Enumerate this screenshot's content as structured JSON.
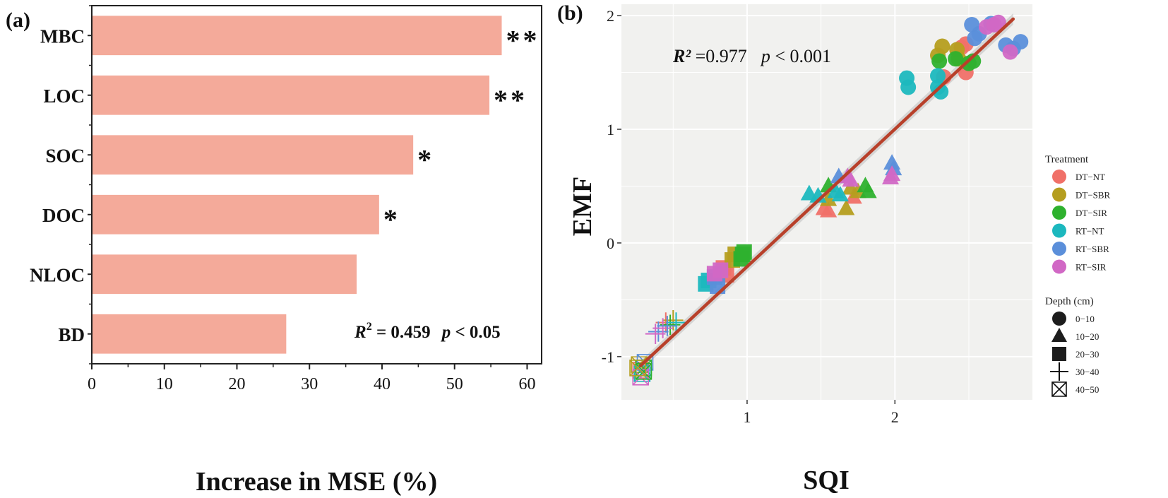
{
  "chart_data": [
    {
      "type": "bar",
      "orientation": "horizontal",
      "panel_label": "(a)",
      "categories": [
        "MBC",
        "LOC",
        "SOC",
        "DOC",
        "NLOC",
        "BD"
      ],
      "values": [
        56.5,
        54.8,
        44.3,
        39.6,
        36.5,
        26.8
      ],
      "significance": [
        "**",
        "**",
        "*",
        "*",
        "",
        ""
      ],
      "xlabel": "Increase in MSE (%)",
      "xlim": [
        0,
        62
      ],
      "xticks": [
        "0",
        "10",
        "20",
        "30",
        "40",
        "50",
        "60"
      ],
      "xtick_values": [
        0,
        10,
        20,
        30,
        40,
        50,
        60
      ],
      "bar_color": "#f4aa9a",
      "annotation": {
        "r2_label": "R",
        "r2_sup": "2",
        "r2_text": " = 0.459",
        "p_label": "p",
        "p_text": " < 0.05"
      }
    },
    {
      "type": "scatter",
      "panel_label": "(b)",
      "xlabel": "SQI",
      "ylabel": "EMF",
      "xlim": [
        0.15,
        2.93
      ],
      "ylim": [
        -1.38,
        2.1
      ],
      "xticks": [
        "1",
        "2"
      ],
      "xtick_values": [
        1,
        2
      ],
      "yticks": [
        "-1",
        "0",
        "1",
        "2"
      ],
      "ytick_values": [
        -1,
        0,
        1,
        2
      ],
      "background": "#f1f1ef",
      "annotation": {
        "r2_label": "R²",
        "r2_text": " =0.977",
        "p_label": "p",
        "p_text": " < 0.001"
      },
      "fit_line": {
        "x": [
          0.28,
          2.8
        ],
        "y": [
          -1.08,
          1.97
        ],
        "color": "#b8402a"
      },
      "legend_treatment": {
        "title": "Treatment",
        "items": [
          {
            "label": "DT−NT",
            "color": "#f07068"
          },
          {
            "label": "DT−SBR",
            "color": "#b59e1f"
          },
          {
            "label": "DT−SIR",
            "color": "#2eb12e"
          },
          {
            "label": "RT−NT",
            "color": "#1cb8be"
          },
          {
            "label": "RT−SBR",
            "color": "#5b8fda"
          },
          {
            "label": "RT−SIR",
            "color": "#d168c5"
          }
        ]
      },
      "legend_depth": {
        "title": "Depth (cm)",
        "items": [
          {
            "label": "0−10",
            "shape": "circle"
          },
          {
            "label": "10−20",
            "shape": "triangle"
          },
          {
            "label": "20−30",
            "shape": "square"
          },
          {
            "label": "30−40",
            "shape": "plus"
          },
          {
            "label": "40−50",
            "shape": "boxx"
          }
        ]
      },
      "points": [
        {
          "x": 2.48,
          "y": 1.75,
          "t": 0,
          "d": 0
        },
        {
          "x": 2.45,
          "y": 1.72,
          "t": 0,
          "d": 0
        },
        {
          "x": 2.33,
          "y": 1.46,
          "t": 0,
          "d": 0
        },
        {
          "x": 2.48,
          "y": 1.5,
          "t": 0,
          "d": 0
        },
        {
          "x": 2.32,
          "y": 1.73,
          "t": 1,
          "d": 0
        },
        {
          "x": 2.42,
          "y": 1.7,
          "t": 1,
          "d": 0
        },
        {
          "x": 2.29,
          "y": 1.65,
          "t": 1,
          "d": 0
        },
        {
          "x": 2.43,
          "y": 1.62,
          "t": 1,
          "d": 0
        },
        {
          "x": 2.3,
          "y": 1.6,
          "t": 2,
          "d": 0
        },
        {
          "x": 2.41,
          "y": 1.62,
          "t": 2,
          "d": 0
        },
        {
          "x": 2.53,
          "y": 1.6,
          "t": 2,
          "d": 0
        },
        {
          "x": 2.5,
          "y": 1.58,
          "t": 2,
          "d": 0
        },
        {
          "x": 2.08,
          "y": 1.45,
          "t": 3,
          "d": 0
        },
        {
          "x": 2.09,
          "y": 1.37,
          "t": 3,
          "d": 0
        },
        {
          "x": 2.29,
          "y": 1.47,
          "t": 3,
          "d": 0
        },
        {
          "x": 2.29,
          "y": 1.37,
          "t": 3,
          "d": 0
        },
        {
          "x": 2.31,
          "y": 1.33,
          "t": 3,
          "d": 0
        },
        {
          "x": 2.52,
          "y": 1.92,
          "t": 4,
          "d": 0
        },
        {
          "x": 2.57,
          "y": 1.84,
          "t": 4,
          "d": 0
        },
        {
          "x": 2.54,
          "y": 1.8,
          "t": 4,
          "d": 0
        },
        {
          "x": 2.75,
          "y": 1.74,
          "t": 4,
          "d": 0
        },
        {
          "x": 2.85,
          "y": 1.77,
          "t": 4,
          "d": 0
        },
        {
          "x": 2.8,
          "y": 1.71,
          "t": 4,
          "d": 0
        },
        {
          "x": 2.65,
          "y": 1.93,
          "t": 4,
          "d": 0
        },
        {
          "x": 2.7,
          "y": 1.94,
          "t": 5,
          "d": 0
        },
        {
          "x": 2.67,
          "y": 1.92,
          "t": 5,
          "d": 0
        },
        {
          "x": 2.62,
          "y": 1.9,
          "t": 5,
          "d": 0
        },
        {
          "x": 2.78,
          "y": 1.68,
          "t": 5,
          "d": 0
        },
        {
          "x": 1.52,
          "y": 0.3,
          "t": 0,
          "d": 1
        },
        {
          "x": 1.55,
          "y": 0.28,
          "t": 0,
          "d": 1
        },
        {
          "x": 1.72,
          "y": 0.4,
          "t": 0,
          "d": 1
        },
        {
          "x": 1.55,
          "y": 0.38,
          "t": 1,
          "d": 1
        },
        {
          "x": 1.67,
          "y": 0.3,
          "t": 1,
          "d": 1
        },
        {
          "x": 1.75,
          "y": 0.45,
          "t": 1,
          "d": 1
        },
        {
          "x": 1.7,
          "y": 0.48,
          "t": 1,
          "d": 1
        },
        {
          "x": 1.55,
          "y": 0.5,
          "t": 2,
          "d": 1
        },
        {
          "x": 1.8,
          "y": 0.5,
          "t": 2,
          "d": 1
        },
        {
          "x": 1.82,
          "y": 0.45,
          "t": 2,
          "d": 1
        },
        {
          "x": 1.42,
          "y": 0.43,
          "t": 3,
          "d": 1
        },
        {
          "x": 1.6,
          "y": 0.45,
          "t": 3,
          "d": 1
        },
        {
          "x": 1.48,
          "y": 0.41,
          "t": 3,
          "d": 1
        },
        {
          "x": 1.63,
          "y": 0.42,
          "t": 3,
          "d": 1
        },
        {
          "x": 1.62,
          "y": 0.58,
          "t": 4,
          "d": 1
        },
        {
          "x": 1.98,
          "y": 0.7,
          "t": 4,
          "d": 1
        },
        {
          "x": 1.99,
          "y": 0.65,
          "t": 4,
          "d": 1
        },
        {
          "x": 1.98,
          "y": 0.6,
          "t": 5,
          "d": 1
        },
        {
          "x": 1.97,
          "y": 0.57,
          "t": 5,
          "d": 1
        },
        {
          "x": 1.7,
          "y": 0.55,
          "t": 5,
          "d": 1
        },
        {
          "x": 1.68,
          "y": 0.58,
          "t": 5,
          "d": 1
        },
        {
          "x": 0.86,
          "y": -0.28,
          "t": 0,
          "d": 2
        },
        {
          "x": 0.84,
          "y": -0.22,
          "t": 0,
          "d": 2
        },
        {
          "x": 0.9,
          "y": -0.15,
          "t": 1,
          "d": 2
        },
        {
          "x": 0.92,
          "y": -0.1,
          "t": 1,
          "d": 2
        },
        {
          "x": 0.97,
          "y": -0.1,
          "t": 2,
          "d": 2
        },
        {
          "x": 0.96,
          "y": -0.14,
          "t": 2,
          "d": 2
        },
        {
          "x": 0.98,
          "y": -0.08,
          "t": 2,
          "d": 2
        },
        {
          "x": 0.72,
          "y": -0.36,
          "t": 3,
          "d": 2
        },
        {
          "x": 0.74,
          "y": -0.33,
          "t": 3,
          "d": 2
        },
        {
          "x": 0.8,
          "y": -0.38,
          "t": 4,
          "d": 2
        },
        {
          "x": 0.78,
          "y": -0.3,
          "t": 4,
          "d": 2
        },
        {
          "x": 0.78,
          "y": -0.27,
          "t": 5,
          "d": 2
        },
        {
          "x": 0.82,
          "y": -0.24,
          "t": 5,
          "d": 2
        },
        {
          "x": 0.45,
          "y": -0.7,
          "t": 0,
          "d": 3
        },
        {
          "x": 0.5,
          "y": -0.68,
          "t": 1,
          "d": 3
        },
        {
          "x": 0.48,
          "y": -0.72,
          "t": 2,
          "d": 3
        },
        {
          "x": 0.52,
          "y": -0.7,
          "t": 3,
          "d": 3
        },
        {
          "x": 0.4,
          "y": -0.78,
          "t": 4,
          "d": 3
        },
        {
          "x": 0.43,
          "y": -0.75,
          "t": 5,
          "d": 3
        },
        {
          "x": 0.38,
          "y": -0.8,
          "t": 5,
          "d": 3
        },
        {
          "x": 0.46,
          "y": -0.73,
          "t": 4,
          "d": 3
        },
        {
          "x": 0.28,
          "y": -1.12,
          "t": 0,
          "d": 4
        },
        {
          "x": 0.27,
          "y": -1.07,
          "t": 1,
          "d": 4
        },
        {
          "x": 0.3,
          "y": -1.1,
          "t": 2,
          "d": 4
        },
        {
          "x": 0.29,
          "y": -1.15,
          "t": 3,
          "d": 4
        },
        {
          "x": 0.31,
          "y": -1.05,
          "t": 4,
          "d": 4
        },
        {
          "x": 0.28,
          "y": -1.18,
          "t": 5,
          "d": 4
        },
        {
          "x": 0.3,
          "y": -1.13,
          "t": 2,
          "d": 4
        },
        {
          "x": 0.26,
          "y": -1.1,
          "t": 1,
          "d": 4
        }
      ]
    }
  ]
}
